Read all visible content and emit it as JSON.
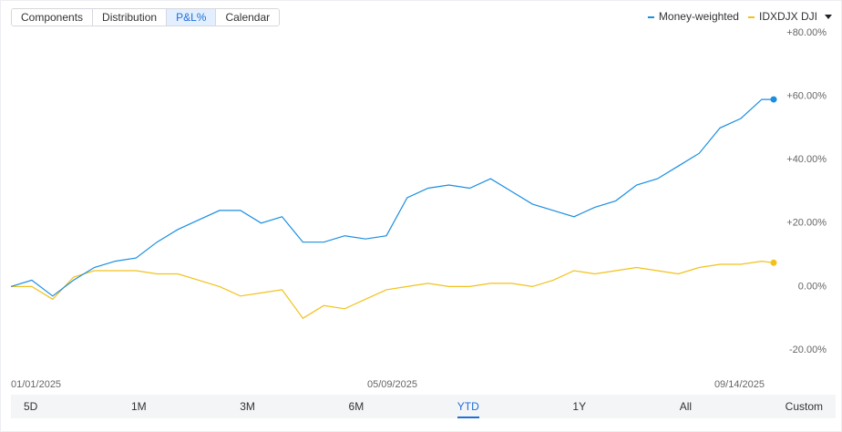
{
  "tabs": [
    "Components",
    "Distribution",
    "P&L%",
    "Calendar"
  ],
  "active_tab": 2,
  "ranges": [
    "5D",
    "1M",
    "3M",
    "6M",
    "YTD",
    "1Y",
    "All",
    "Custom"
  ],
  "active_range": 4,
  "chart_data": {
    "type": "line",
    "legend": "top-right",
    "x": [
      "01/01/2025",
      "01/08/2025",
      "01/15/2025",
      "01/22/2025",
      "01/29/2025",
      "02/05/2025",
      "02/12/2025",
      "02/19/2025",
      "02/26/2025",
      "03/05/2025",
      "03/12/2025",
      "03/19/2025",
      "03/26/2025",
      "04/02/2025",
      "04/09/2025",
      "04/16/2025",
      "04/23/2025",
      "04/30/2025",
      "05/07/2025",
      "05/14/2025",
      "05/21/2025",
      "05/28/2025",
      "06/04/2025",
      "06/11/2025",
      "06/18/2025",
      "06/25/2025",
      "07/02/2025",
      "07/09/2025",
      "07/16/2025",
      "07/23/2025",
      "07/30/2025",
      "08/06/2025",
      "08/13/2025",
      "08/20/2025",
      "08/27/2025",
      "09/03/2025",
      "09/10/2025",
      "09/14/2025"
    ],
    "xticks": [
      "01/01/2025",
      "05/09/2025",
      "09/14/2025"
    ],
    "ylim": [
      -20,
      80
    ],
    "yticks": [
      {
        "value": 80,
        "label": "+80.00%"
      },
      {
        "value": 60,
        "label": "+60.00%"
      },
      {
        "value": 40,
        "label": "+40.00%"
      },
      {
        "value": 20,
        "label": "+20.00%"
      },
      {
        "value": 0,
        "label": "0.00%"
      },
      {
        "value": -20,
        "label": "-20.00%"
      }
    ],
    "end_marker": true,
    "series": [
      {
        "name": "Money-weighted",
        "color": "#1a8ee0",
        "values": [
          0,
          2,
          -3,
          2,
          6,
          8,
          9,
          14,
          18,
          21,
          24,
          24,
          20,
          22,
          14,
          14,
          16,
          15,
          16,
          28,
          31,
          32,
          31,
          34,
          30,
          26,
          24,
          22,
          25,
          27,
          32,
          34,
          38,
          42,
          50,
          53,
          59,
          59
        ]
      },
      {
        "name": "IDXDJX DJI",
        "color": "#f2c21b",
        "values": [
          0,
          0,
          -4,
          3,
          5,
          5,
          5,
          4,
          4,
          2,
          0,
          -3,
          -2,
          -1,
          -10,
          -6,
          -7,
          -4,
          -1,
          0,
          1,
          0,
          0,
          1,
          1,
          0,
          2,
          5,
          4,
          5,
          6,
          5,
          4,
          6,
          7,
          7,
          8,
          7.5
        ]
      }
    ]
  }
}
